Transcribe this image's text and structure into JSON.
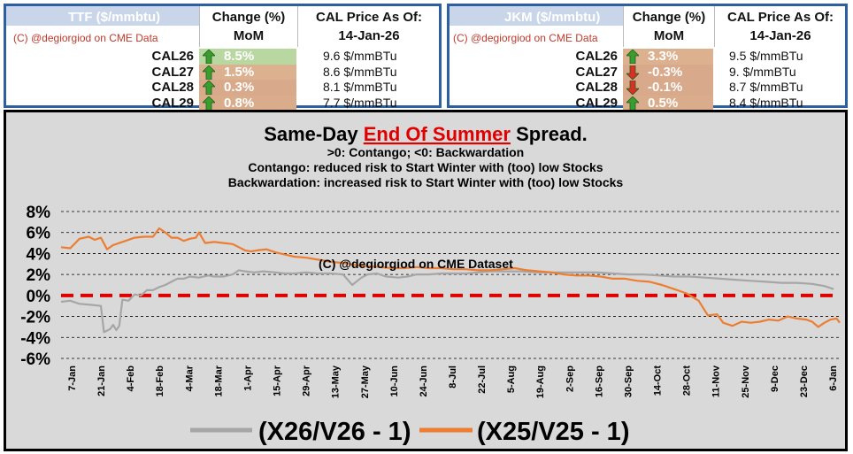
{
  "ttf_table": {
    "title": "TTF ($/mmbtu)",
    "change_header": "Change (%)",
    "change_sub": "MoM",
    "price_header": "CAL Price As Of:",
    "price_date": "14-Jan-26",
    "copyright": "(C) @degiorgiod on CME Data",
    "rows": [
      {
        "label": "CAL26",
        "change": "8.5%",
        "direction": "up",
        "price": "9.6 $/mmBTu",
        "color": "#b9d7a0"
      },
      {
        "label": "CAL27",
        "change": "1.5%",
        "direction": "up",
        "price": "8.6 $/mmBTu",
        "color": "#dcb190"
      },
      {
        "label": "CAL28",
        "change": "0.3%",
        "direction": "up",
        "price": "8.1 $/mmBTu",
        "color": "#d8a98a"
      },
      {
        "label": "CAL29",
        "change": "0.8%",
        "direction": "up",
        "price": "7.7 $/mmBTu",
        "color": "#d9ac8c"
      }
    ]
  },
  "jkm_table": {
    "title": "JKM ($/mmbtu)",
    "change_header": "Change (%)",
    "change_sub": "MoM",
    "price_header": "CAL Price As Of:",
    "price_date": "14-Jan-26",
    "copyright": "(C) @degiorgiod on CME Data",
    "rows": [
      {
        "label": "CAL26",
        "change": "3.3%",
        "direction": "up",
        "price": "9.5 $/mmBTu",
        "color": "#dcb190"
      },
      {
        "label": "CAL27",
        "change": "-0.3%",
        "direction": "down",
        "price": "9. $/mmBTu",
        "color": "#d8a98a"
      },
      {
        "label": "CAL28",
        "change": "-0.1%",
        "direction": "down",
        "price": "8.7 $/mmBTu",
        "color": "#d8a98a"
      },
      {
        "label": "CAL29",
        "change": "0.5%",
        "direction": "up",
        "price": "8.4 $/mmBTu",
        "color": "#d9ac8c"
      }
    ]
  },
  "colors": {
    "panel_border": "#2e5f9e",
    "up_arrow": "#3a9d2f",
    "down_arrow": "#d93025",
    "series_gray": "#a6a6a6",
    "series_orange": "#ed7d31",
    "zero_line": "#e00000",
    "chart_bg": "#d9d9d9"
  },
  "chart_title": {
    "part1": "Same-Day ",
    "part2": "End Of Summer",
    "part3": " Spread.",
    "line2": ">0: Contango; <0: Backwardation",
    "line3": "Contango: reduced risk to Start Winter with (too) low Stocks",
    "line4": "Backwardation: increased risk to Start Winter with (too) low Stocks",
    "watermark": "(C) @degiorgiod on CME Dataset"
  },
  "chart_data": {
    "type": "line",
    "ylim": [
      -6,
      8
    ],
    "yticks": [
      "8%",
      "6%",
      "4%",
      "2%",
      "0%",
      "-2%",
      "-4%",
      "-6%"
    ],
    "x_labels": [
      "7-Jan",
      "21-Jan",
      "4-Feb",
      "18-Feb",
      "4-Mar",
      "18-Mar",
      "1-Apr",
      "15-Apr",
      "29-Apr",
      "13-May",
      "27-May",
      "10-Jun",
      "24-Jun",
      "8-Jul",
      "22-Jul",
      "5-Aug",
      "19-Aug",
      "2-Sep",
      "16-Sep",
      "30-Sep",
      "14-Oct",
      "28-Oct",
      "11-Nov",
      "25-Nov",
      "9-Dec",
      "23-Dec",
      "6-Jan"
    ],
    "grid": true,
    "legend_position": "bottom",
    "series": [
      {
        "name": "(X26/V26 - 1)",
        "color": "#a6a6a6",
        "points": [
          [
            0,
            -0.6
          ],
          [
            3,
            -0.5
          ],
          [
            6,
            -0.8
          ],
          [
            10,
            -0.9
          ],
          [
            13,
            -1.0
          ],
          [
            14,
            -3.5
          ],
          [
            16,
            -3.2
          ],
          [
            17,
            -2.8
          ],
          [
            18,
            -3.3
          ],
          [
            19,
            -2.9
          ],
          [
            20,
            -0.4
          ],
          [
            22,
            -0.5
          ],
          [
            24,
            0.1
          ],
          [
            26,
            0.0
          ],
          [
            28,
            0.5
          ],
          [
            30,
            0.5
          ],
          [
            32,
            0.8
          ],
          [
            34,
            1.0
          ],
          [
            36,
            1.3
          ],
          [
            38,
            1.6
          ],
          [
            40,
            1.6
          ],
          [
            42,
            1.8
          ],
          [
            45,
            1.7
          ],
          [
            48,
            1.9
          ],
          [
            50,
            1.8
          ],
          [
            53,
            1.8
          ],
          [
            56,
            2.0
          ],
          [
            58,
            2.4
          ],
          [
            60,
            2.3
          ],
          [
            63,
            2.2
          ],
          [
            66,
            2.3
          ],
          [
            70,
            2.2
          ],
          [
            73,
            2.1
          ],
          [
            76,
            2.1
          ],
          [
            80,
            2.2
          ],
          [
            84,
            2.1
          ],
          [
            88,
            2.1
          ],
          [
            92,
            2.0
          ],
          [
            95,
            1.0
          ],
          [
            98,
            1.7
          ],
          [
            100,
            2.0
          ],
          [
            103,
            2.1
          ],
          [
            106,
            1.8
          ],
          [
            110,
            1.7
          ],
          [
            113,
            1.8
          ],
          [
            116,
            2.0
          ],
          [
            120,
            2.0
          ],
          [
            124,
            2.1
          ],
          [
            128,
            2.1
          ],
          [
            132,
            2.1
          ],
          [
            136,
            2.2
          ],
          [
            140,
            2.3
          ],
          [
            145,
            2.3
          ],
          [
            150,
            2.3
          ],
          [
            155,
            2.2
          ],
          [
            160,
            2.2
          ],
          [
            165,
            2.2
          ],
          [
            170,
            2.2
          ],
          [
            175,
            2.2
          ],
          [
            180,
            2.1
          ],
          [
            185,
            2.0
          ],
          [
            190,
            2.0
          ],
          [
            195,
            1.9
          ],
          [
            200,
            1.8
          ],
          [
            205,
            1.8
          ],
          [
            210,
            1.7
          ],
          [
            215,
            1.6
          ],
          [
            220,
            1.5
          ],
          [
            225,
            1.4
          ],
          [
            230,
            1.3
          ],
          [
            235,
            1.2
          ],
          [
            240,
            1.2
          ],
          [
            245,
            1.1
          ],
          [
            249,
            0.9
          ],
          [
            252,
            0.6
          ]
        ]
      },
      {
        "name": "(X25/V25 - 1)",
        "color": "#ed7d31",
        "points": [
          [
            0,
            4.6
          ],
          [
            3,
            4.5
          ],
          [
            6,
            5.4
          ],
          [
            9,
            5.6
          ],
          [
            11,
            5.3
          ],
          [
            13,
            5.5
          ],
          [
            15,
            4.4
          ],
          [
            17,
            4.8
          ],
          [
            19,
            5.0
          ],
          [
            21,
            5.2
          ],
          [
            24,
            5.5
          ],
          [
            27,
            5.6
          ],
          [
            30,
            5.6
          ],
          [
            32,
            6.4
          ],
          [
            34,
            6.0
          ],
          [
            36,
            5.5
          ],
          [
            38,
            5.5
          ],
          [
            40,
            5.2
          ],
          [
            42,
            5.4
          ],
          [
            44,
            5.5
          ],
          [
            45,
            6.0
          ],
          [
            47,
            5.0
          ],
          [
            50,
            5.1
          ],
          [
            53,
            5.0
          ],
          [
            56,
            4.9
          ],
          [
            58,
            4.6
          ],
          [
            60,
            4.3
          ],
          [
            62,
            4.2
          ],
          [
            64,
            4.3
          ],
          [
            67,
            4.4
          ],
          [
            70,
            4.1
          ],
          [
            73,
            3.9
          ],
          [
            76,
            3.7
          ],
          [
            80,
            3.6
          ],
          [
            84,
            3.4
          ],
          [
            88,
            3.2
          ],
          [
            92,
            3.1
          ],
          [
            96,
            2.9
          ],
          [
            100,
            2.8
          ],
          [
            104,
            2.7
          ],
          [
            108,
            2.6
          ],
          [
            112,
            2.6
          ],
          [
            116,
            2.7
          ],
          [
            120,
            2.6
          ],
          [
            124,
            2.6
          ],
          [
            128,
            2.5
          ],
          [
            132,
            2.5
          ],
          [
            136,
            2.4
          ],
          [
            140,
            2.4
          ],
          [
            144,
            2.5
          ],
          [
            148,
            2.6
          ],
          [
            152,
            2.4
          ],
          [
            156,
            2.3
          ],
          [
            160,
            2.2
          ],
          [
            164,
            2.0
          ],
          [
            168,
            1.9
          ],
          [
            172,
            1.9
          ],
          [
            176,
            1.8
          ],
          [
            180,
            1.6
          ],
          [
            184,
            1.6
          ],
          [
            188,
            1.4
          ],
          [
            192,
            1.3
          ],
          [
            196,
            1.0
          ],
          [
            200,
            0.6
          ],
          [
            204,
            0.2
          ],
          [
            208,
            -0.5
          ],
          [
            211,
            -1.9
          ],
          [
            214,
            -1.8
          ],
          [
            216,
            -2.6
          ],
          [
            219,
            -2.9
          ],
          [
            222,
            -2.5
          ],
          [
            225,
            -2.6
          ],
          [
            228,
            -2.5
          ],
          [
            231,
            -2.3
          ],
          [
            234,
            -2.4
          ],
          [
            237,
            -2.0
          ],
          [
            240,
            -2.2
          ],
          [
            243,
            -2.3
          ],
          [
            245,
            -2.5
          ],
          [
            247,
            -3.0
          ],
          [
            249,
            -2.6
          ],
          [
            251,
            -2.3
          ],
          [
            253,
            -2.2
          ],
          [
            254,
            -2.6
          ]
        ]
      }
    ]
  }
}
